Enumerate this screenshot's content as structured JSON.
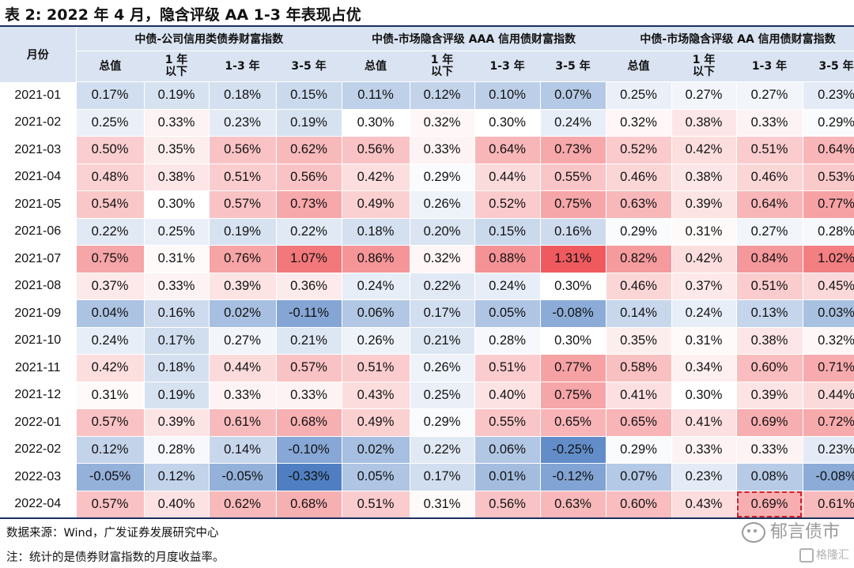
{
  "title": "表 2:  2022 年 4 月，隐含评级 AA 1-3 年表现占优",
  "table": {
    "month_header": "月份",
    "groups": [
      "中债-公司信用类债券财富指数",
      "中债-市场隐含评级 AAA 信用债财富指数",
      "中债-市场隐含评级 AA 信用债财富指数"
    ],
    "subheaders": [
      [
        "总值"
      ],
      [
        "1 年",
        "以下"
      ],
      [
        "1-3 年"
      ],
      [
        "3-5 年"
      ]
    ],
    "rows": [
      {
        "month": "2021-01",
        "values": [
          "0.17%",
          "0.19%",
          "0.18%",
          "0.15%",
          "0.11%",
          "0.12%",
          "0.10%",
          "0.07%",
          "0.25%",
          "0.27%",
          "0.27%",
          "0.23%"
        ]
      },
      {
        "month": "2021-02",
        "values": [
          "0.25%",
          "0.33%",
          "0.23%",
          "0.19%",
          "0.30%",
          "0.32%",
          "0.30%",
          "0.24%",
          "0.32%",
          "0.38%",
          "0.33%",
          "0.29%"
        ]
      },
      {
        "month": "2021-03",
        "values": [
          "0.50%",
          "0.35%",
          "0.56%",
          "0.62%",
          "0.56%",
          "0.33%",
          "0.64%",
          "0.73%",
          "0.52%",
          "0.42%",
          "0.51%",
          "0.64%"
        ]
      },
      {
        "month": "2021-04",
        "values": [
          "0.48%",
          "0.38%",
          "0.51%",
          "0.56%",
          "0.42%",
          "0.29%",
          "0.44%",
          "0.55%",
          "0.46%",
          "0.38%",
          "0.46%",
          "0.53%"
        ]
      },
      {
        "month": "2021-05",
        "values": [
          "0.54%",
          "0.30%",
          "0.57%",
          "0.73%",
          "0.49%",
          "0.26%",
          "0.52%",
          "0.75%",
          "0.63%",
          "0.39%",
          "0.64%",
          "0.77%"
        ]
      },
      {
        "month": "2021-06",
        "values": [
          "0.22%",
          "0.25%",
          "0.19%",
          "0.22%",
          "0.18%",
          "0.20%",
          "0.15%",
          "0.16%",
          "0.29%",
          "0.31%",
          "0.27%",
          "0.28%"
        ]
      },
      {
        "month": "2021-07",
        "values": [
          "0.75%",
          "0.31%",
          "0.76%",
          "1.07%",
          "0.86%",
          "0.32%",
          "0.88%",
          "1.31%",
          "0.82%",
          "0.42%",
          "0.84%",
          "1.02%"
        ]
      },
      {
        "month": "2021-08",
        "values": [
          "0.37%",
          "0.33%",
          "0.39%",
          "0.36%",
          "0.24%",
          "0.22%",
          "0.24%",
          "0.30%",
          "0.46%",
          "0.37%",
          "0.51%",
          "0.45%"
        ]
      },
      {
        "month": "2021-09",
        "values": [
          "0.04%",
          "0.16%",
          "0.02%",
          "-0.11%",
          "0.06%",
          "0.17%",
          "0.05%",
          "-0.08%",
          "0.14%",
          "0.24%",
          "0.13%",
          "0.03%"
        ]
      },
      {
        "month": "2021-10",
        "values": [
          "0.24%",
          "0.17%",
          "0.27%",
          "0.21%",
          "0.26%",
          "0.21%",
          "0.28%",
          "0.30%",
          "0.35%",
          "0.31%",
          "0.38%",
          "0.32%"
        ]
      },
      {
        "month": "2021-11",
        "values": [
          "0.42%",
          "0.18%",
          "0.44%",
          "0.57%",
          "0.51%",
          "0.26%",
          "0.51%",
          "0.77%",
          "0.58%",
          "0.34%",
          "0.60%",
          "0.71%"
        ]
      },
      {
        "month": "2021-12",
        "values": [
          "0.31%",
          "0.19%",
          "0.33%",
          "0.33%",
          "0.43%",
          "0.25%",
          "0.40%",
          "0.75%",
          "0.41%",
          "0.30%",
          "0.39%",
          "0.44%"
        ]
      },
      {
        "month": "2022-01",
        "values": [
          "0.57%",
          "0.39%",
          "0.61%",
          "0.68%",
          "0.49%",
          "0.29%",
          "0.55%",
          "0.65%",
          "0.65%",
          "0.41%",
          "0.69%",
          "0.72%"
        ]
      },
      {
        "month": "2022-02",
        "values": [
          "0.12%",
          "0.28%",
          "0.14%",
          "-0.10%",
          "0.02%",
          "0.22%",
          "0.06%",
          "-0.25%",
          "0.29%",
          "0.33%",
          "0.33%",
          "0.23%"
        ]
      },
      {
        "month": "2022-03",
        "values": [
          "-0.05%",
          "0.12%",
          "-0.05%",
          "-0.33%",
          "0.05%",
          "0.17%",
          "0.01%",
          "-0.12%",
          "0.07%",
          "0.23%",
          "0.08%",
          "-0.08%"
        ]
      },
      {
        "month": "2022-04",
        "values": [
          "0.57%",
          "0.40%",
          "0.62%",
          "0.68%",
          "0.51%",
          "0.31%",
          "0.56%",
          "0.63%",
          "0.60%",
          "0.43%",
          "0.69%",
          "0.61%"
        ]
      }
    ],
    "highlight": {
      "row": "2022-04",
      "column_index": 10
    },
    "colors": {
      "header_bg": "#d9e3f1",
      "low": "#4f7fc2",
      "mid": "#ffffff",
      "high": "#ef5a5f",
      "rule": "#1c2f5e",
      "highlight_border": "#d0202a"
    }
  },
  "source": "数据来源：Wind，广发证券发展研究中心",
  "note": "注：统计的是债券财富指数的月度收益率。",
  "watermark": "郁言债市",
  "watermark2": "格隆汇"
}
